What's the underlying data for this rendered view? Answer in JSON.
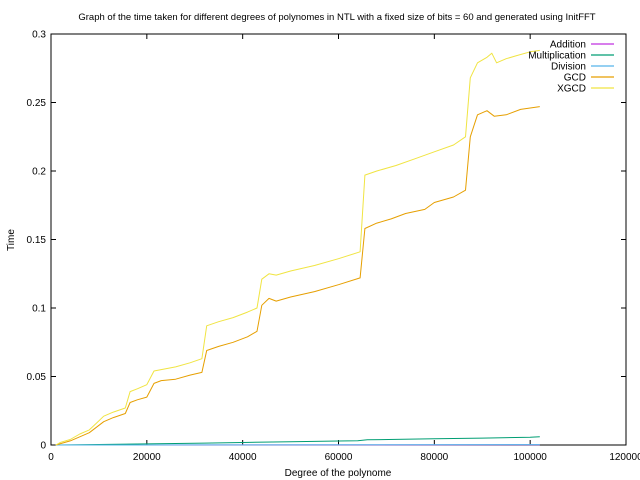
{
  "chart_data": {
    "type": "line",
    "title": "Graph of the time taken for different degrees of polynomes in NTL with a fixed size of bits = 60 and generated using InitFFT",
    "xlabel": "Degree of the polynome",
    "ylabel": "Time",
    "xlim": [
      0,
      120000
    ],
    "ylim": [
      0,
      0.3
    ],
    "xticks": [
      0,
      20000,
      40000,
      60000,
      80000,
      100000,
      120000
    ],
    "xtick_labels": [
      "0",
      "20000",
      "40000",
      "60000",
      "80000",
      "100000",
      "120000"
    ],
    "yticks": [
      0,
      0.05,
      0.1,
      0.15,
      0.2,
      0.25,
      0.3
    ],
    "ytick_labels": [
      "0",
      "0.05",
      "0.1",
      "0.15",
      "0.2",
      "0.25",
      "0.3"
    ],
    "grid": false,
    "legend_position": "top-right",
    "series": [
      {
        "name": "Addition",
        "color": "#c030e0",
        "points": [
          [
            1000,
            0.0
          ],
          [
            50000,
            0.0001
          ],
          [
            102000,
            0.0002
          ]
        ]
      },
      {
        "name": "Multiplication",
        "color": "#009e73",
        "points": [
          [
            1000,
            0.0
          ],
          [
            10000,
            0.0004
          ],
          [
            20000,
            0.0008
          ],
          [
            32000,
            0.0014
          ],
          [
            40000,
            0.0018
          ],
          [
            50000,
            0.0024
          ],
          [
            60000,
            0.0029
          ],
          [
            64000,
            0.0031
          ],
          [
            66000,
            0.0038
          ],
          [
            80000,
            0.0045
          ],
          [
            90000,
            0.005
          ],
          [
            100000,
            0.0056
          ],
          [
            102000,
            0.006
          ]
        ]
      },
      {
        "name": "Division",
        "color": "#56b4e9",
        "points": [
          [
            1000,
            0.0
          ],
          [
            30000,
            0.0001
          ],
          [
            65000,
            0.0002
          ],
          [
            102000,
            0.0003
          ]
        ]
      },
      {
        "name": "GCD",
        "color": "#e69f00",
        "points": [
          [
            1000,
            0.0
          ],
          [
            2000,
            0.001
          ],
          [
            4000,
            0.003
          ],
          [
            6000,
            0.006
          ],
          [
            8000,
            0.009
          ],
          [
            9500,
            0.013
          ],
          [
            11000,
            0.017
          ],
          [
            13000,
            0.02
          ],
          [
            15500,
            0.023
          ],
          [
            16500,
            0.031
          ],
          [
            18000,
            0.033
          ],
          [
            20000,
            0.035
          ],
          [
            21500,
            0.045
          ],
          [
            23000,
            0.047
          ],
          [
            26000,
            0.048
          ],
          [
            29000,
            0.051
          ],
          [
            31500,
            0.053
          ],
          [
            32500,
            0.069
          ],
          [
            35000,
            0.072
          ],
          [
            38000,
            0.075
          ],
          [
            41000,
            0.079
          ],
          [
            43000,
            0.083
          ],
          [
            44000,
            0.102
          ],
          [
            45500,
            0.107
          ],
          [
            47000,
            0.105
          ],
          [
            50000,
            0.108
          ],
          [
            55000,
            0.112
          ],
          [
            60000,
            0.117
          ],
          [
            64500,
            0.122
          ],
          [
            65500,
            0.158
          ],
          [
            68000,
            0.162
          ],
          [
            71000,
            0.165
          ],
          [
            74000,
            0.169
          ],
          [
            78000,
            0.172
          ],
          [
            80000,
            0.177
          ],
          [
            84000,
            0.181
          ],
          [
            86500,
            0.186
          ],
          [
            87500,
            0.225
          ],
          [
            89000,
            0.241
          ],
          [
            91000,
            0.244
          ],
          [
            92500,
            0.24
          ],
          [
            95000,
            0.241
          ],
          [
            98000,
            0.245
          ],
          [
            100000,
            0.246
          ],
          [
            102000,
            0.247
          ]
        ]
      },
      {
        "name": "XGCD",
        "color": "#f0e442",
        "points": [
          [
            1000,
            0.0
          ],
          [
            2000,
            0.002
          ],
          [
            4000,
            0.004
          ],
          [
            6000,
            0.008
          ],
          [
            8000,
            0.011
          ],
          [
            9500,
            0.016
          ],
          [
            11000,
            0.021
          ],
          [
            13000,
            0.024
          ],
          [
            15500,
            0.027
          ],
          [
            16500,
            0.039
          ],
          [
            18000,
            0.041
          ],
          [
            20000,
            0.044
          ],
          [
            21500,
            0.054
          ],
          [
            23000,
            0.055
          ],
          [
            26000,
            0.057
          ],
          [
            29000,
            0.06
          ],
          [
            31500,
            0.063
          ],
          [
            32500,
            0.087
          ],
          [
            35000,
            0.09
          ],
          [
            38000,
            0.093
          ],
          [
            41000,
            0.097
          ],
          [
            43000,
            0.1
          ],
          [
            44000,
            0.121
          ],
          [
            45500,
            0.125
          ],
          [
            47000,
            0.124
          ],
          [
            50000,
            0.127
          ],
          [
            55000,
            0.131
          ],
          [
            60000,
            0.136
          ],
          [
            64500,
            0.141
          ],
          [
            65500,
            0.197
          ],
          [
            68000,
            0.2
          ],
          [
            72000,
            0.204
          ],
          [
            76000,
            0.209
          ],
          [
            80000,
            0.214
          ],
          [
            84000,
            0.219
          ],
          [
            86500,
            0.225
          ],
          [
            87500,
            0.268
          ],
          [
            89000,
            0.279
          ],
          [
            91000,
            0.283
          ],
          [
            92000,
            0.286
          ],
          [
            93000,
            0.279
          ],
          [
            95000,
            0.282
          ],
          [
            97000,
            0.284
          ],
          [
            100000,
            0.287
          ],
          [
            102000,
            0.288
          ]
        ]
      }
    ]
  }
}
